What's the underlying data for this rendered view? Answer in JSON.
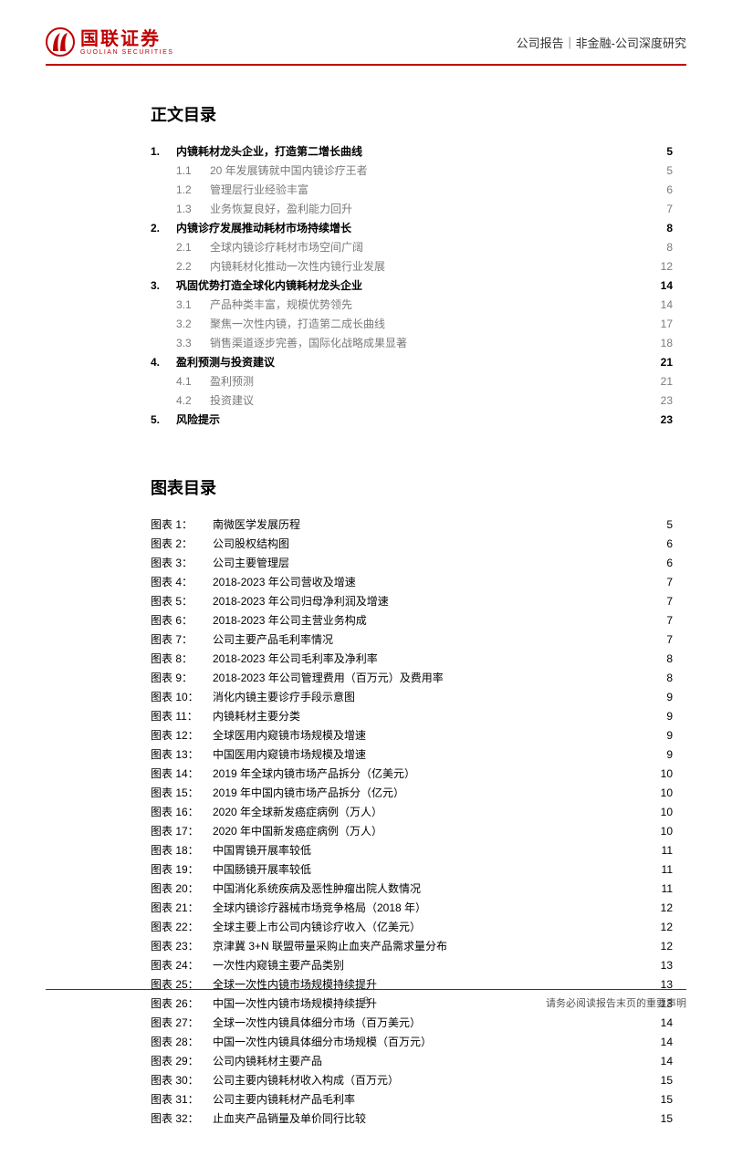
{
  "header": {
    "logo_cn": "国联证券",
    "logo_en": "GUOLIAN SECURITIES",
    "accent_color": "#c00000",
    "right": "公司报告｜非金融-公司深度研究"
  },
  "headings": {
    "toc": "正文目录",
    "charts": "图表目录"
  },
  "toc": [
    {
      "level": 1,
      "num": "1.",
      "title": "内镜耗材龙头企业，打造第二增长曲线",
      "page": 5
    },
    {
      "level": 2,
      "num": "1.1",
      "title": "20 年发展铸就中国内镜诊疗王者",
      "page": 5
    },
    {
      "level": 2,
      "num": "1.2",
      "title": "管理层行业经验丰富",
      "page": 6
    },
    {
      "level": 2,
      "num": "1.3",
      "title": "业务恢复良好，盈利能力回升",
      "page": 7
    },
    {
      "level": 1,
      "num": "2.",
      "title": "内镜诊疗发展推动耗材市场持续增长",
      "page": 8
    },
    {
      "level": 2,
      "num": "2.1",
      "title": "全球内镜诊疗耗材市场空间广阔",
      "page": 8
    },
    {
      "level": 2,
      "num": "2.2",
      "title": "内镜耗材化推动一次性内镜行业发展",
      "page": 12
    },
    {
      "level": 1,
      "num": "3.",
      "title": "巩固优势打造全球化内镜耗材龙头企业",
      "page": 14
    },
    {
      "level": 2,
      "num": "3.1",
      "title": "产品种类丰富，规模优势领先",
      "page": 14
    },
    {
      "level": 2,
      "num": "3.2",
      "title": "聚焦一次性内镜，打造第二成长曲线",
      "page": 17
    },
    {
      "level": 2,
      "num": "3.3",
      "title": "销售渠道逐步完善，国际化战略成果显著",
      "page": 18
    },
    {
      "level": 1,
      "num": "4.",
      "title": "盈利预测与投资建议",
      "page": 21
    },
    {
      "level": 2,
      "num": "4.1",
      "title": "盈利预测",
      "page": 21
    },
    {
      "level": 2,
      "num": "4.2",
      "title": "投资建议",
      "page": 23
    },
    {
      "level": 1,
      "num": "5.",
      "title": "风险提示",
      "page": 23
    }
  ],
  "charts": [
    {
      "num": "图表 1：",
      "title": "南微医学发展历程",
      "page": 5
    },
    {
      "num": "图表 2：",
      "title": "公司股权结构图",
      "page": 6
    },
    {
      "num": "图表 3：",
      "title": "公司主要管理层",
      "page": 6
    },
    {
      "num": "图表 4：",
      "title": "2018-2023 年公司营收及增速",
      "page": 7
    },
    {
      "num": "图表 5：",
      "title": "2018-2023 年公司归母净利润及增速",
      "page": 7
    },
    {
      "num": "图表 6：",
      "title": "2018-2023 年公司主营业务构成",
      "page": 7
    },
    {
      "num": "图表 7：",
      "title": "公司主要产品毛利率情况",
      "page": 7
    },
    {
      "num": "图表 8：",
      "title": "2018-2023 年公司毛利率及净利率",
      "page": 8
    },
    {
      "num": "图表 9：",
      "title": "2018-2023 年公司管理费用（百万元）及费用率",
      "page": 8
    },
    {
      "num": "图表 10：",
      "title": "消化内镜主要诊疗手段示意图",
      "page": 9
    },
    {
      "num": "图表 11：",
      "title": "内镜耗材主要分类",
      "page": 9
    },
    {
      "num": "图表 12：",
      "title": "全球医用内窥镜市场规模及增速",
      "page": 9
    },
    {
      "num": "图表 13：",
      "title": "中国医用内窥镜市场规模及增速",
      "page": 9
    },
    {
      "num": "图表 14：",
      "title": "2019 年全球内镜市场产品拆分（亿美元）",
      "page": 10
    },
    {
      "num": "图表 15：",
      "title": "2019 年中国内镜市场产品拆分（亿元）",
      "page": 10
    },
    {
      "num": "图表 16：",
      "title": "2020 年全球新发癌症病例（万人）",
      "page": 10
    },
    {
      "num": "图表 17：",
      "title": "2020 年中国新发癌症病例（万人）",
      "page": 10
    },
    {
      "num": "图表 18：",
      "title": "中国胃镜开展率较低",
      "page": 11
    },
    {
      "num": "图表 19：",
      "title": "中国肠镜开展率较低",
      "page": 11
    },
    {
      "num": "图表 20：",
      "title": "中国消化系统疾病及恶性肿瘤出院人数情况",
      "page": 11
    },
    {
      "num": "图表 21：",
      "title": "全球内镜诊疗器械市场竞争格局（2018 年）",
      "page": 12
    },
    {
      "num": "图表 22：",
      "title": "全球主要上市公司内镜诊疗收入（亿美元）",
      "page": 12
    },
    {
      "num": "图表 23：",
      "title": "京津冀 3+N 联盟带量采购止血夹产品需求量分布",
      "page": 12
    },
    {
      "num": "图表 24：",
      "title": "一次性内窥镜主要产品类别",
      "page": 13
    },
    {
      "num": "图表 25：",
      "title": "全球一次性内镜市场规模持续提升",
      "page": 13
    },
    {
      "num": "图表 26：",
      "title": "中国一次性内镜市场规模持续提升",
      "page": 13
    },
    {
      "num": "图表 27：",
      "title": "全球一次性内镜具体细分市场（百万美元）",
      "page": 14
    },
    {
      "num": "图表 28：",
      "title": "中国一次性内镜具体细分市场规模（百万元）",
      "page": 14
    },
    {
      "num": "图表 29：",
      "title": "公司内镜耗材主要产品",
      "page": 14
    },
    {
      "num": "图表 30：",
      "title": "公司主要内镜耗材收入构成（百万元）",
      "page": 15
    },
    {
      "num": "图表 31：",
      "title": "公司主要内镜耗材产品毛利率",
      "page": 15
    },
    {
      "num": "图表 32：",
      "title": "止血夹产品销量及单价同行比较",
      "page": 15
    }
  ],
  "footer": {
    "page_number": "3",
    "disclaimer": "请务必阅读报告末页的重要声明"
  }
}
